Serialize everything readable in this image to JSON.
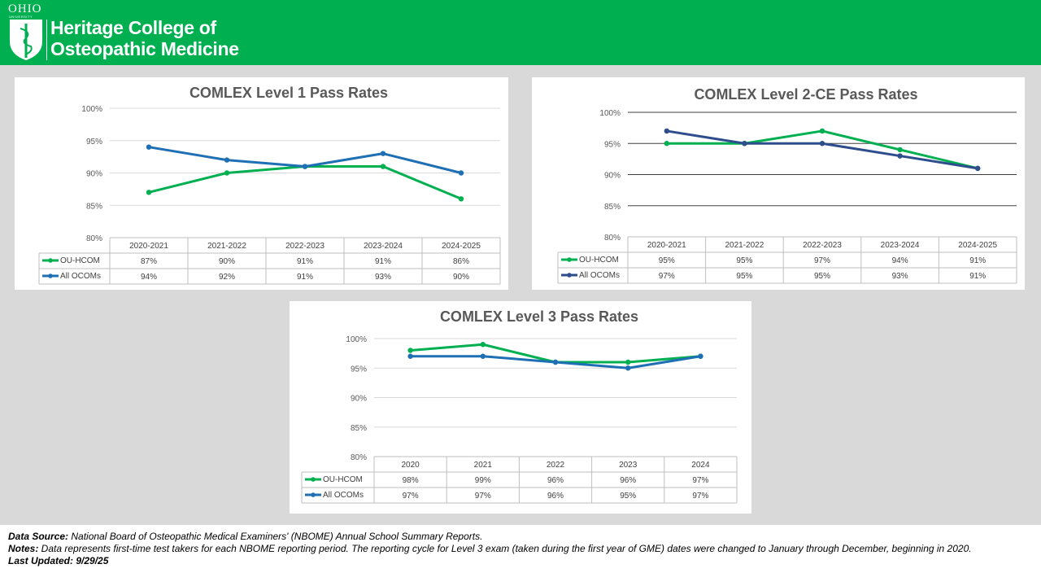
{
  "header": {
    "university": "OHIO",
    "university_sub": "UNIVERSITY",
    "college_line1": "Heritage College of",
    "college_line2": "Osteopathic Medicine"
  },
  "colors": {
    "header_green": "#00b050",
    "ou_hcom": "#00b050",
    "all_ocoms_l1": "#1f6fb4",
    "all_ocoms_l2": "#2e4d8c",
    "all_ocoms_l3": "#1f6fb4"
  },
  "chart_data": [
    {
      "type": "line",
      "title": "COMLEX Level 1 Pass Rates",
      "categories": [
        "2020-2021",
        "2021-2022",
        "2022-2023",
        "2023-2024",
        "2024-2025"
      ],
      "ylim": [
        80,
        100
      ],
      "yticks": [
        "80%",
        "85%",
        "90%",
        "95%",
        "100%"
      ],
      "grid": true,
      "series": [
        {
          "name": "OU-HCOM",
          "values": [
            87,
            90,
            91,
            91,
            86
          ],
          "labels": [
            "87%",
            "90%",
            "91%",
            "91%",
            "86%"
          ]
        },
        {
          "name": "All OCOMs",
          "values": [
            94,
            92,
            91,
            93,
            90
          ],
          "labels": [
            "94%",
            "92%",
            "91%",
            "93%",
            "90%"
          ]
        }
      ]
    },
    {
      "type": "line",
      "title": "COMLEX Level 2-CE Pass Rates",
      "categories": [
        "2020-2021",
        "2021-2022",
        "2022-2023",
        "2023-2024",
        "2024-2025"
      ],
      "ylim": [
        80,
        100
      ],
      "yticks": [
        "80%",
        "85%",
        "90%",
        "95%",
        "100%"
      ],
      "grid": true,
      "series": [
        {
          "name": "OU-HCOM",
          "values": [
            95,
            95,
            97,
            94,
            91
          ],
          "labels": [
            "95%",
            "95%",
            "97%",
            "94%",
            "91%"
          ]
        },
        {
          "name": "All OCOMs",
          "values": [
            97,
            95,
            95,
            93,
            91
          ],
          "labels": [
            "97%",
            "95%",
            "95%",
            "93%",
            "91%"
          ]
        }
      ]
    },
    {
      "type": "line",
      "title": "COMLEX Level 3 Pass Rates",
      "categories": [
        "2020",
        "2021",
        "2022",
        "2023",
        "2024"
      ],
      "ylim": [
        80,
        100
      ],
      "yticks": [
        "80%",
        "85%",
        "90%",
        "95%",
        "100%"
      ],
      "grid": true,
      "series": [
        {
          "name": "OU-HCOM",
          "values": [
            98,
            99,
            96,
            96,
            97
          ],
          "labels": [
            "98%",
            "99%",
            "96%",
            "96%",
            "97%"
          ]
        },
        {
          "name": "All OCOMs",
          "values": [
            97,
            97,
            96,
            95,
            97
          ],
          "labels": [
            "97%",
            "97%",
            "96%",
            "95%",
            "97%"
          ]
        }
      ]
    }
  ],
  "footer": {
    "source_label": "Data Source:",
    "source_text": " National Board of Osteopathic Medical Examiners' (NBOME) Annual School Summary Reports.",
    "notes_label": "Notes:",
    "notes_text": " Data represents first-time test takers for each NBOME reporting period. The reporting cycle for Level 3 exam (taken during the first year of GME) dates were changed to January through December, beginning in 2020.",
    "updated_label": "Last Updated: 9/29/25"
  }
}
